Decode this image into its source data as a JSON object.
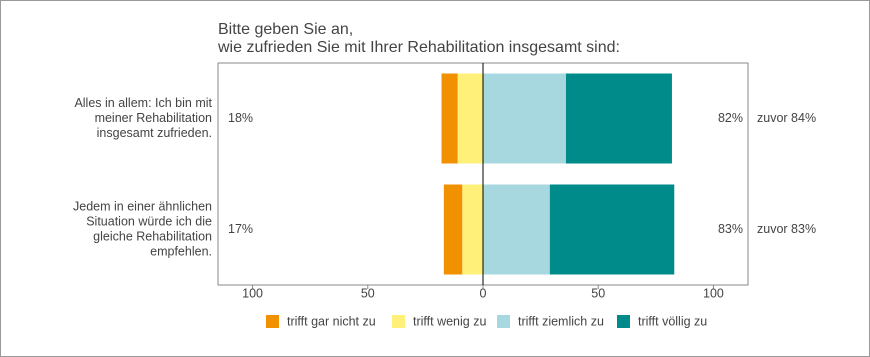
{
  "chart_data": {
    "type": "diverging-bar",
    "title": [
      "Bitte geben Sie an,",
      "wie zufrieden Sie mit Ihrer Rehabilitation insgesamt sind:"
    ],
    "categories": [
      [
        "Alles in allem: Ich bin mit",
        "meiner Rehabilitation",
        "insgesamt zufrieden."
      ],
      [
        "Jedem in einer ähnlichen",
        "Situation würde ich die",
        "gleiche Rehabilitation",
        "empfehlen."
      ]
    ],
    "series": [
      {
        "name": "trifft gar nicht zu",
        "color": "#f29100",
        "values": [
          -7,
          -8
        ]
      },
      {
        "name": "trifft wenig zu",
        "color": "#fff07a",
        "values": [
          -11,
          -9
        ]
      },
      {
        "name": "trifft ziemlich zu",
        "color": "#a8d8df",
        "values": [
          36,
          29
        ]
      },
      {
        "name": "trifft völlig zu",
        "color": "#008b8b",
        "values": [
          46,
          54
        ]
      }
    ],
    "negative_totals": {
      "values": [
        18,
        17
      ],
      "value_labels": [
        "18%",
        "17%"
      ]
    },
    "positive_totals": {
      "values": [
        82,
        83
      ],
      "value_labels": [
        "82%",
        "83%"
      ]
    },
    "previous_totals": {
      "values": [
        84,
        83
      ],
      "value_labels": [
        "zuvor 84%",
        "zuvor 83%"
      ]
    },
    "xlim": [
      -115,
      115
    ],
    "xticks": [
      {
        "value": -100,
        "label": "100"
      },
      {
        "value": -50,
        "label": "50"
      },
      0,
      50,
      100
    ]
  }
}
